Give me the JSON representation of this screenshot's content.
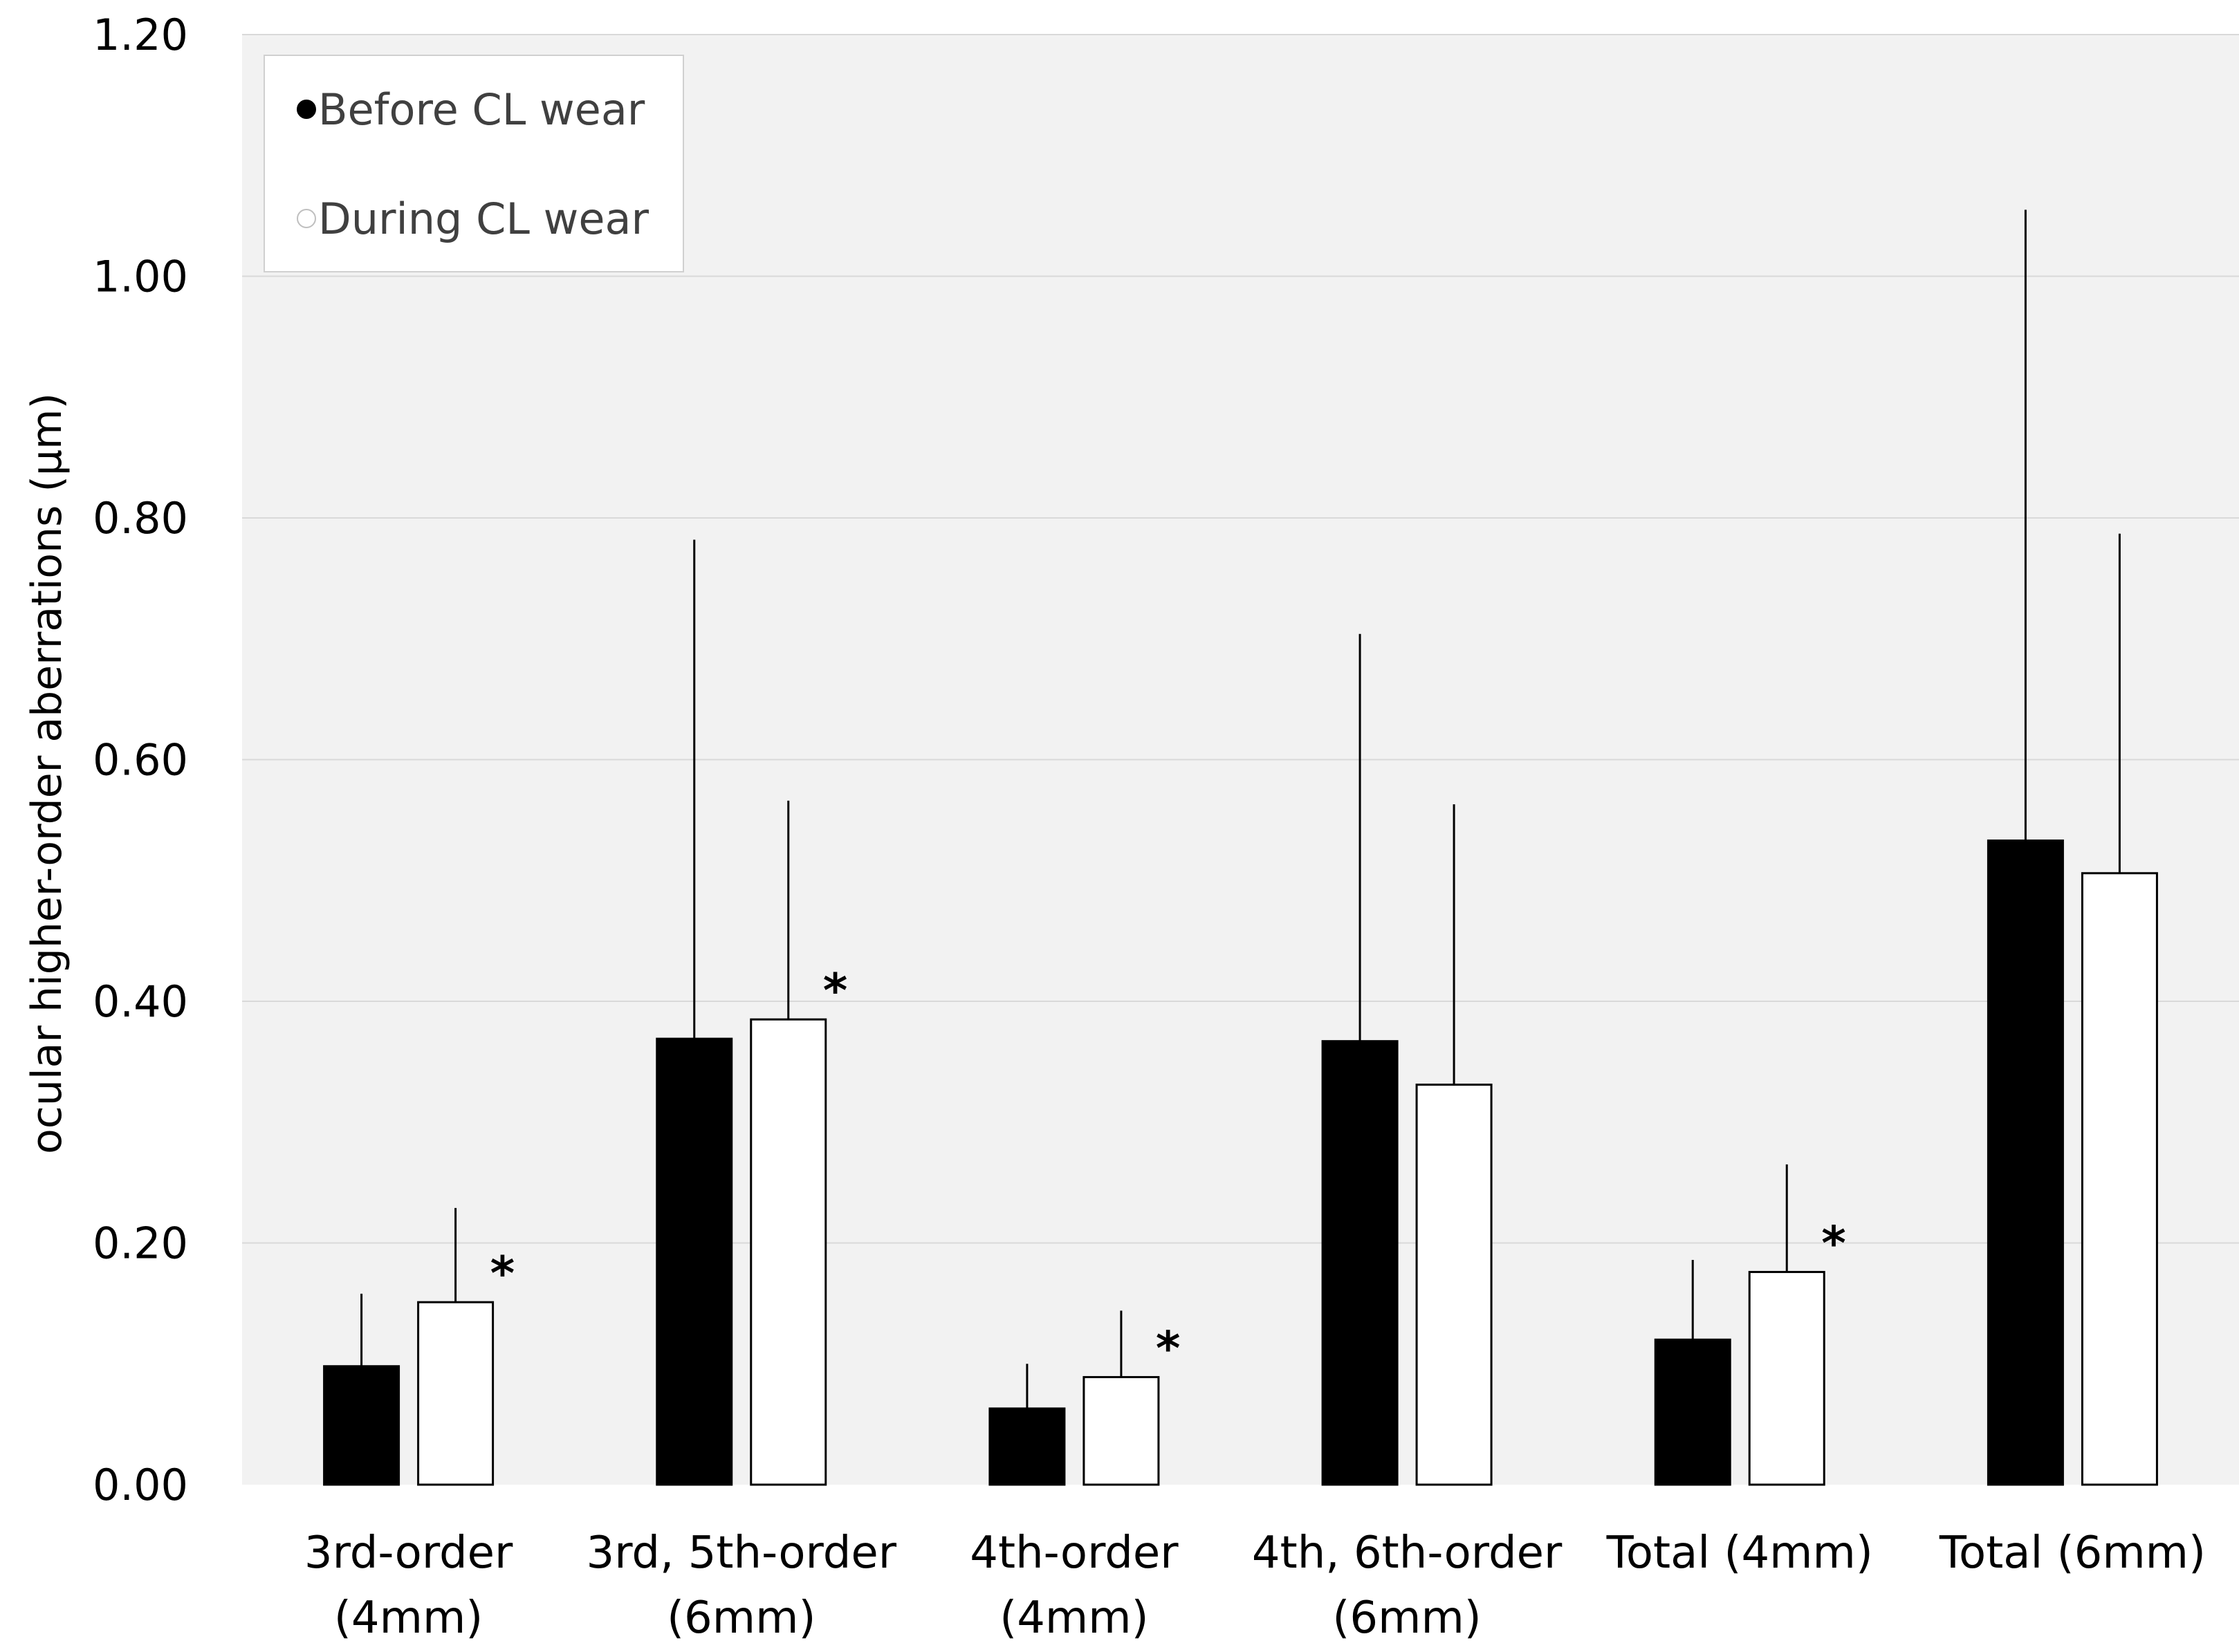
{
  "chart_data": {
    "type": "bar",
    "ylabel": "ocular higher-order aberrations (µm)",
    "ylim": [
      0,
      1.2
    ],
    "yticks": [
      "0.00",
      "0.20",
      "0.40",
      "0.60",
      "0.80",
      "1.00",
      "1.20"
    ],
    "ytick_values": [
      0,
      0.2,
      0.4,
      0.6,
      0.8,
      1.0,
      1.2
    ],
    "grid": true,
    "legend_position": "top-left",
    "categories": [
      [
        "3rd-order",
        "(4mm)"
      ],
      [
        "3rd, 5th-order",
        "(6mm)"
      ],
      [
        "4th-order",
        "(4mm)"
      ],
      [
        "4th, 6th-order",
        "(6mm)"
      ],
      [
        "Total (4mm)"
      ],
      [
        "Total (6mm)"
      ]
    ],
    "series": [
      {
        "name": "Before CL wear",
        "legend_label": "Before CL wear",
        "fill": "#000000",
        "values": [
          0.098,
          0.369,
          0.063,
          0.367,
          0.12,
          0.533
        ],
        "errors": [
          0.06,
          0.413,
          0.037,
          0.337,
          0.066,
          0.522
        ]
      },
      {
        "name": "During CL wear",
        "legend_label": "During CL wear",
        "fill": "#ffffff",
        "values": [
          0.151,
          0.385,
          0.089,
          0.331,
          0.176,
          0.506
        ],
        "errors": [
          0.078,
          0.181,
          0.055,
          0.232,
          0.089,
          0.281
        ]
      }
    ],
    "significance": [
      {
        "series": 1,
        "category": 0,
        "label": "*"
      },
      {
        "series": 1,
        "category": 1,
        "label": "*"
      },
      {
        "series": 1,
        "category": 2,
        "label": "*"
      },
      {
        "series": 1,
        "category": 4,
        "label": "*"
      }
    ],
    "colors": {
      "plot_background": "#f2f2f2",
      "gridline": "#d9d9d9",
      "legend_background": "#ffffff"
    }
  }
}
